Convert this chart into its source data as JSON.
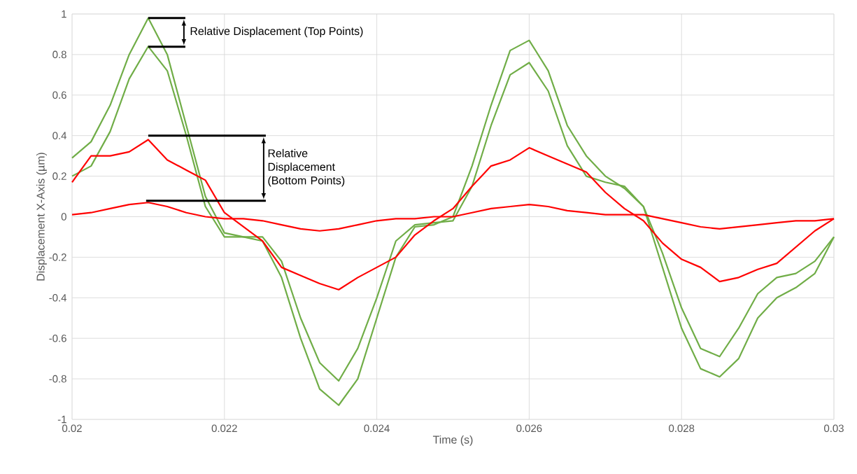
{
  "chart_data": {
    "type": "line",
    "xlabel": "Time (s)",
    "ylabel": "Displacement X-Axis (µm)",
    "x": [
      0.02,
      0.02025,
      0.0205,
      0.02075,
      0.021,
      0.02125,
      0.0215,
      0.02175,
      0.022,
      0.02225,
      0.0225,
      0.02275,
      0.023,
      0.02325,
      0.0235,
      0.02375,
      0.024,
      0.02425,
      0.0245,
      0.02475,
      0.025,
      0.02525,
      0.0255,
      0.02575,
      0.026,
      0.02625,
      0.0265,
      0.02675,
      0.027,
      0.02725,
      0.0275,
      0.02775,
      0.028,
      0.02825,
      0.0285,
      0.02875,
      0.029,
      0.02925,
      0.0295,
      0.02975,
      0.03
    ],
    "series": [
      {
        "color": "#70ad47",
        "values": [
          0.29,
          0.37,
          0.55,
          0.8,
          0.98,
          0.8,
          0.45,
          0.1,
          -0.08,
          -0.1,
          -0.12,
          -0.3,
          -0.6,
          -0.85,
          -0.93,
          -0.8,
          -0.5,
          -0.2,
          -0.05,
          -0.04,
          0.0,
          0.25,
          0.55,
          0.82,
          0.87,
          0.72,
          0.45,
          0.3,
          0.2,
          0.14,
          0.05,
          -0.25,
          -0.55,
          -0.75,
          -0.79,
          -0.7,
          -0.5,
          -0.4,
          -0.35,
          -0.28,
          -0.1
        ]
      },
      {
        "color": "#70ad47",
        "values": [
          0.2,
          0.25,
          0.42,
          0.68,
          0.84,
          0.72,
          0.4,
          0.05,
          -0.1,
          -0.1,
          -0.1,
          -0.22,
          -0.5,
          -0.72,
          -0.81,
          -0.65,
          -0.4,
          -0.12,
          -0.04,
          -0.03,
          -0.02,
          0.15,
          0.45,
          0.7,
          0.76,
          0.62,
          0.35,
          0.2,
          0.17,
          0.15,
          0.05,
          -0.18,
          -0.45,
          -0.65,
          -0.69,
          -0.55,
          -0.38,
          -0.3,
          -0.28,
          -0.22,
          -0.1
        ]
      },
      {
        "color": "#ff0000",
        "values": [
          0.17,
          0.3,
          0.3,
          0.32,
          0.38,
          0.28,
          0.23,
          0.18,
          0.02,
          -0.05,
          -0.12,
          -0.25,
          -0.29,
          -0.33,
          -0.36,
          -0.3,
          -0.25,
          -0.2,
          -0.09,
          -0.02,
          0.04,
          0.15,
          0.25,
          0.28,
          0.34,
          0.3,
          0.26,
          0.22,
          0.12,
          0.04,
          -0.02,
          -0.13,
          -0.21,
          -0.25,
          -0.32,
          -0.3,
          -0.26,
          -0.23,
          -0.15,
          -0.07,
          -0.01
        ]
      },
      {
        "color": "#ff0000",
        "values": [
          0.01,
          0.02,
          0.04,
          0.06,
          0.07,
          0.05,
          0.02,
          0.0,
          -0.01,
          -0.01,
          -0.02,
          -0.04,
          -0.06,
          -0.07,
          -0.06,
          -0.04,
          -0.02,
          -0.01,
          -0.01,
          0.0,
          0.0,
          0.02,
          0.04,
          0.05,
          0.06,
          0.05,
          0.03,
          0.02,
          0.01,
          0.01,
          0.01,
          -0.01,
          -0.03,
          -0.05,
          -0.06,
          -0.05,
          -0.04,
          -0.03,
          -0.02,
          -0.02,
          -0.01
        ]
      }
    ],
    "xlim": [
      0.02,
      0.03
    ],
    "ylim": [
      -1,
      1
    ],
    "xticks": [
      0.02,
      0.022,
      0.024,
      0.026,
      0.028,
      0.03
    ],
    "yticks": [
      -1,
      -0.8,
      -0.6,
      -0.4,
      -0.2,
      0,
      0.2,
      0.4,
      0.6,
      0.8,
      1
    ],
    "grid": true,
    "marker": "none",
    "line_style": "solid",
    "annotations": [
      {
        "text": "Relative Displacement (Top Points)",
        "x": 0.021,
        "y": 0.98
      },
      "Relative Displacement (Bottom Points)"
    ]
  }
}
